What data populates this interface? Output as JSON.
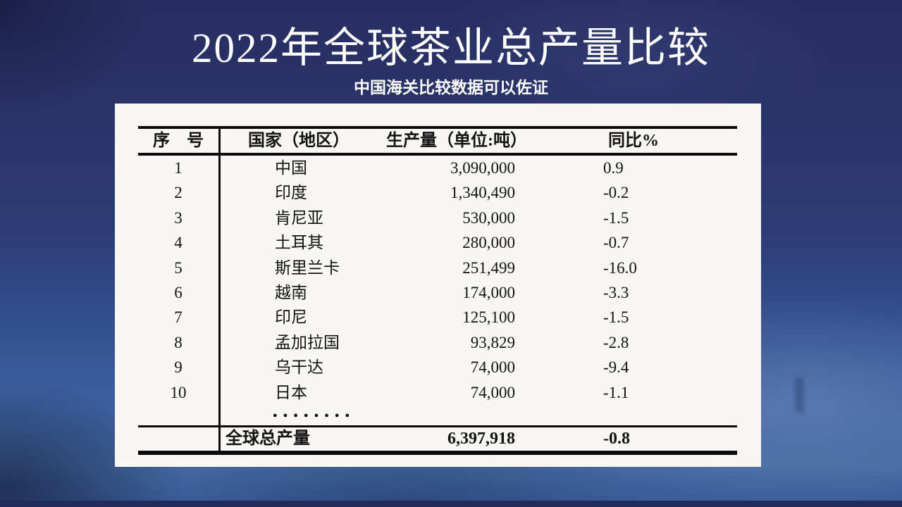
{
  "slide": {
    "title": "2022年全球茶业总产量比较",
    "subtitle": "中国海关比较数据可以佐证"
  },
  "table": {
    "headers": {
      "index": "序　号",
      "country": "国家（地区）",
      "production": "生产量（单位:吨）",
      "yoy": "同比%"
    },
    "rows": [
      {
        "index": "1",
        "country": "中国",
        "production": "3,090,000",
        "yoy": "0.9"
      },
      {
        "index": "2",
        "country": "印度",
        "production": "1,340,490",
        "yoy": "-0.2"
      },
      {
        "index": "3",
        "country": "肯尼亚",
        "production": "530,000",
        "yoy": "-1.5"
      },
      {
        "index": "4",
        "country": "土耳其",
        "production": "280,000",
        "yoy": "-0.7"
      },
      {
        "index": "5",
        "country": "斯里兰卡",
        "production": "251,499",
        "yoy": "-16.0"
      },
      {
        "index": "6",
        "country": "越南",
        "production": "174,000",
        "yoy": "-3.3"
      },
      {
        "index": "7",
        "country": "印尼",
        "production": "125,100",
        "yoy": "-1.5"
      },
      {
        "index": "8",
        "country": "孟加拉国",
        "production": "93,829",
        "yoy": "-2.8"
      },
      {
        "index": "9",
        "country": "乌干达",
        "production": "74,000",
        "yoy": "-9.4"
      },
      {
        "index": "10",
        "country": "日本",
        "production": "74,000",
        "yoy": "-1.1"
      }
    ],
    "ellipsis": "●●●●●●●●",
    "total": {
      "label": "全球总产量",
      "production": "6,397,918",
      "yoy": "-0.8"
    }
  },
  "colors": {
    "background_top": "#272e61",
    "background_bottom": "#44689f",
    "panel": "#f8f7f4",
    "text": "#121212",
    "title_text": "#ffffff"
  },
  "chart_data": {
    "type": "table",
    "title": "2022年全球茶业总产量比较",
    "columns": [
      "序号",
      "国家（地区）",
      "生产量（单位:吨）",
      "同比%"
    ],
    "rows": [
      [
        1,
        "中国",
        3090000,
        0.9
      ],
      [
        2,
        "印度",
        1340490,
        -0.2
      ],
      [
        3,
        "肯尼亚",
        530000,
        -1.5
      ],
      [
        4,
        "土耳其",
        280000,
        -0.7
      ],
      [
        5,
        "斯里兰卡",
        251499,
        -16.0
      ],
      [
        6,
        "越南",
        174000,
        -3.3
      ],
      [
        7,
        "印尼",
        125100,
        -1.5
      ],
      [
        8,
        "孟加拉国",
        93829,
        -2.8
      ],
      [
        9,
        "乌干达",
        74000,
        -9.4
      ],
      [
        10,
        "日本",
        74000,
        -1.1
      ]
    ],
    "total_row": [
      "",
      "全球总产量",
      6397918,
      -0.8
    ]
  }
}
